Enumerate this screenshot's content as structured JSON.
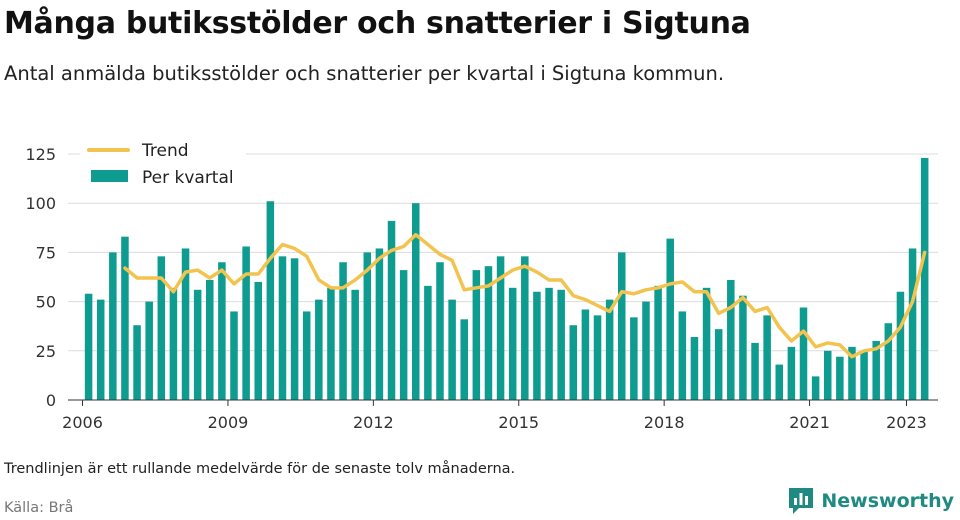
{
  "header": {
    "title": "Många butiksstölder och snatterier i Sigtuna",
    "subtitle": "Antal anmälda butiksstölder och snatterier per kvartal i Sigtuna kommun."
  },
  "footer": {
    "note": "Trendlinjen är ett rullande medelvärde för de senaste tolv månaderna.",
    "source": "Källa: Brå",
    "brand": "Newsworthy"
  },
  "colors": {
    "bars": "#0e9c90",
    "trend": "#f2c44f",
    "grid": "#dcdcdc",
    "brand": "#1f8a82"
  },
  "chart_data": {
    "type": "bar",
    "title": "",
    "xlabel": "",
    "ylabel": "",
    "ylim": [
      0,
      125
    ],
    "yticks": [
      0,
      25,
      50,
      75,
      100,
      125
    ],
    "xlim": [
      2005.7,
      2023.65
    ],
    "xticks": [
      2006,
      2009,
      2012,
      2015,
      2018,
      2021,
      2023
    ],
    "grid": true,
    "legend_position": "top-left",
    "x_start": 2006.125,
    "x_step": 0.25,
    "series": [
      {
        "name": "Per kvartal",
        "type": "bar",
        "values": [
          54,
          51,
          75,
          83,
          38,
          50,
          73,
          57,
          77,
          56,
          61,
          70,
          45,
          78,
          60,
          101,
          73,
          72,
          45,
          51,
          57,
          70,
          56,
          75,
          77,
          91,
          66,
          100,
          58,
          70,
          51,
          41,
          66,
          68,
          73,
          57,
          73,
          55,
          57,
          56,
          38,
          46,
          43,
          51,
          75,
          42,
          50,
          58,
          82,
          45,
          32,
          57,
          36,
          61,
          53,
          29,
          43,
          18,
          27,
          47,
          12,
          25,
          22,
          27,
          25,
          30,
          39,
          55,
          77,
          123
        ]
      },
      {
        "name": "Trend",
        "type": "line",
        "values": [
          null,
          null,
          null,
          67,
          62,
          62,
          62,
          55,
          65,
          66,
          62,
          66,
          59,
          64,
          64,
          72,
          79,
          77,
          73,
          61,
          57,
          57,
          61,
          66,
          72,
          76,
          78,
          84,
          79,
          74,
          71,
          56,
          57,
          58,
          62,
          66,
          68,
          65,
          61,
          61,
          53,
          51,
          48,
          45,
          55,
          54,
          56,
          57,
          59,
          60,
          55,
          55,
          44,
          47,
          52,
          45,
          47,
          37,
          30,
          35,
          27,
          29,
          28,
          22,
          25,
          26,
          30,
          37,
          50,
          75
        ]
      }
    ]
  }
}
